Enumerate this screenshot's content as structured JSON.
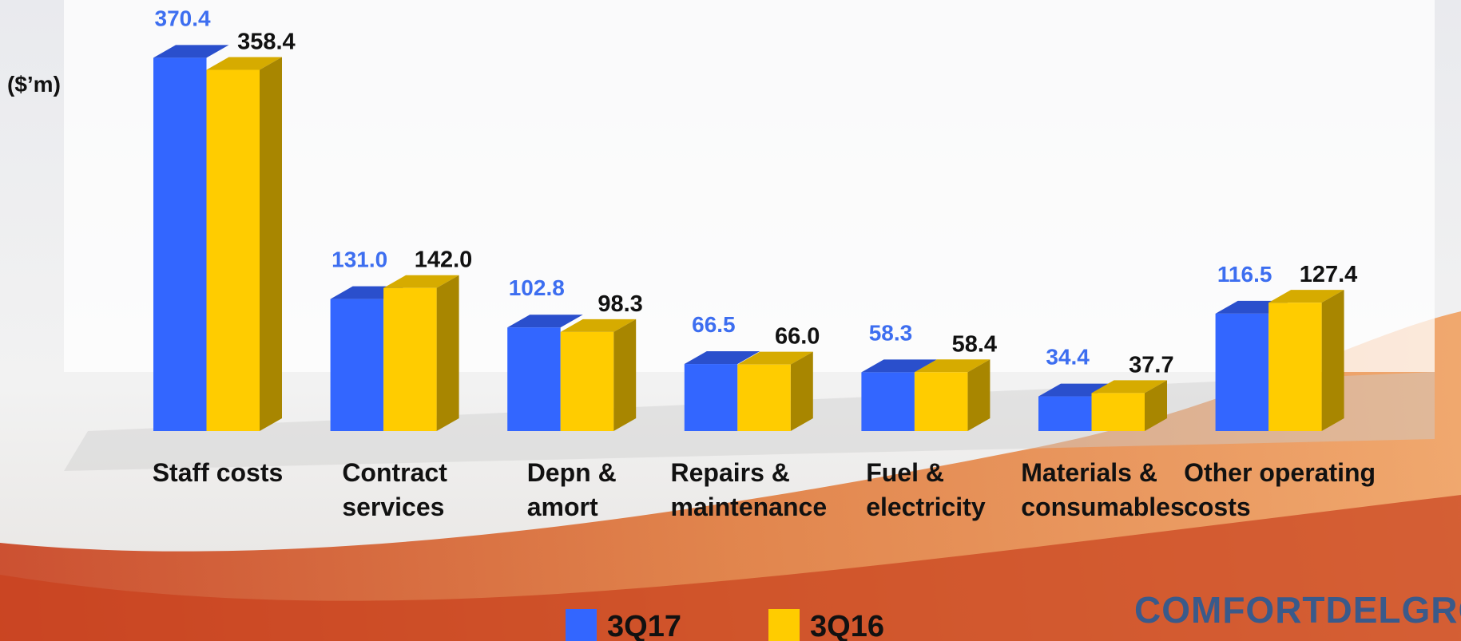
{
  "chart_data": {
    "type": "bar3d",
    "y_label": "($’m)",
    "categories": [
      [
        "Staff costs"
      ],
      [
        "Contract",
        "services"
      ],
      [
        "Depn &",
        "amort"
      ],
      [
        "Repairs &",
        "maintenance"
      ],
      [
        "Fuel &",
        "electricity"
      ],
      [
        "Materials &",
        "consumables"
      ],
      [
        "Other operating",
        "costs"
      ]
    ],
    "series": [
      {
        "name": "3Q17",
        "color": "#3366ff",
        "top_color": "#2a4fcc",
        "label_color": "#3d6ef0",
        "values": [
          370.4,
          131.0,
          102.8,
          66.5,
          58.3,
          34.4,
          116.5
        ],
        "value_labels": [
          "370.4",
          "131.0",
          "102.8",
          "66.5",
          "58.3",
          "34.4",
          "116.5"
        ]
      },
      {
        "name": "3Q16",
        "color": "#ffcc00",
        "top_color": "#d6ab00",
        "side_color": "#a88600",
        "label_color": "#111111",
        "values": [
          358.4,
          142.0,
          98.3,
          66.0,
          58.4,
          37.7,
          127.4
        ],
        "value_labels": [
          "358.4",
          "142.0",
          "98.3",
          "66.0",
          "58.4",
          "37.7",
          "127.4"
        ]
      }
    ],
    "ylim": [
      0,
      400
    ],
    "logo": "COMFORTDELGRO"
  }
}
